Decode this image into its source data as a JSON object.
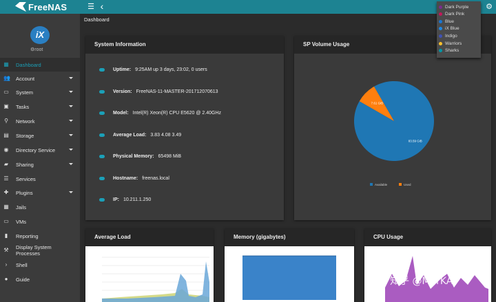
{
  "app": {
    "logo_text": "FreeNAS"
  },
  "topbar": {
    "menu_icon": "☰",
    "back_icon": "‹",
    "settings_icon": "⚙"
  },
  "user": {
    "avatar_text": "iX",
    "name": "root"
  },
  "sidebar": {
    "items": [
      {
        "label": "Dashboard",
        "icon": "dashboard-icon",
        "glyph": "▦",
        "has_caret": false,
        "active": true
      },
      {
        "label": "Account",
        "icon": "account-icon",
        "glyph": "👥",
        "has_caret": true
      },
      {
        "label": "System",
        "icon": "system-icon",
        "glyph": "▭",
        "has_caret": true
      },
      {
        "label": "Tasks",
        "icon": "tasks-icon",
        "glyph": "▣",
        "has_caret": true
      },
      {
        "label": "Network",
        "icon": "network-icon",
        "glyph": "⚲",
        "has_caret": true
      },
      {
        "label": "Storage",
        "icon": "storage-icon",
        "glyph": "▤",
        "has_caret": true
      },
      {
        "label": "Directory Service",
        "icon": "directory-service-icon",
        "glyph": "◉",
        "has_caret": true
      },
      {
        "label": "Sharing",
        "icon": "sharing-icon",
        "glyph": "▰",
        "has_caret": true
      },
      {
        "label": "Services",
        "icon": "services-icon",
        "glyph": "☰",
        "has_caret": false
      },
      {
        "label": "Plugins",
        "icon": "plugins-icon",
        "glyph": "✚",
        "has_caret": true
      },
      {
        "label": "Jails",
        "icon": "jails-icon",
        "glyph": "▦",
        "has_caret": false
      },
      {
        "label": "VMs",
        "icon": "vms-icon",
        "glyph": "▭",
        "has_caret": false
      },
      {
        "label": "Reporting",
        "icon": "reporting-icon",
        "glyph": "▮",
        "has_caret": false
      },
      {
        "label": "Display System Processes",
        "icon": "processes-icon",
        "glyph": "⚒",
        "has_caret": false
      },
      {
        "label": "Shell",
        "icon": "shell-icon",
        "glyph": "›",
        "has_caret": false
      },
      {
        "label": "Guide",
        "icon": "guide-icon",
        "glyph": "●",
        "has_caret": false
      }
    ]
  },
  "breadcrumb": "Dashboard",
  "system_info": {
    "title": "System Information",
    "rows": [
      {
        "key": "Uptime:",
        "value": "9:25AM up 3 days, 23:02, 0 users"
      },
      {
        "key": "Version:",
        "value": "FreeNAS-11-MASTER-201712070613"
      },
      {
        "key": "Model:",
        "value": "Intel(R) Xeon(R) CPU E5620 @ 2.40GHz"
      },
      {
        "key": "Average Load:",
        "value": "3.83 4.08 3.49"
      },
      {
        "key": "Physical Memory:",
        "value": "65498 MiB"
      },
      {
        "key": "Hostname:",
        "value": "freenas.local"
      },
      {
        "key": "IP:",
        "value": "10.211.1.250"
      }
    ]
  },
  "volume_usage": {
    "title": "SP Volume Usage",
    "chart_data": {
      "type": "pie",
      "labels": [
        "Available",
        "Used"
      ],
      "values": [
        83.59,
        7.61
      ],
      "slice_labels": [
        "83.59 GiB",
        "7.61 GiB"
      ],
      "colors": [
        "#1f77b4",
        "#ff7f0e"
      ],
      "legend": "bottom"
    }
  },
  "average_load": {
    "title": "Average Load"
  },
  "memory": {
    "title": "Memory (gigabytes)"
  },
  "cpu": {
    "title": "CPU Usage"
  },
  "theme_menu": {
    "items": [
      {
        "label": "Dark Purple",
        "color": "#7b2d8e"
      },
      {
        "label": "Dark Pink",
        "color": "#c2185b"
      },
      {
        "label": "Blue",
        "color": "#1976d2"
      },
      {
        "label": "iX Blue",
        "color": "#1e88e5"
      },
      {
        "label": "Indigo",
        "color": "#3f51b5"
      },
      {
        "label": "Warriors",
        "color": "#fbc02d"
      },
      {
        "label": "Sharks",
        "color": "#0097a7"
      }
    ]
  },
  "watermark": "知乎 @MarKA"
}
